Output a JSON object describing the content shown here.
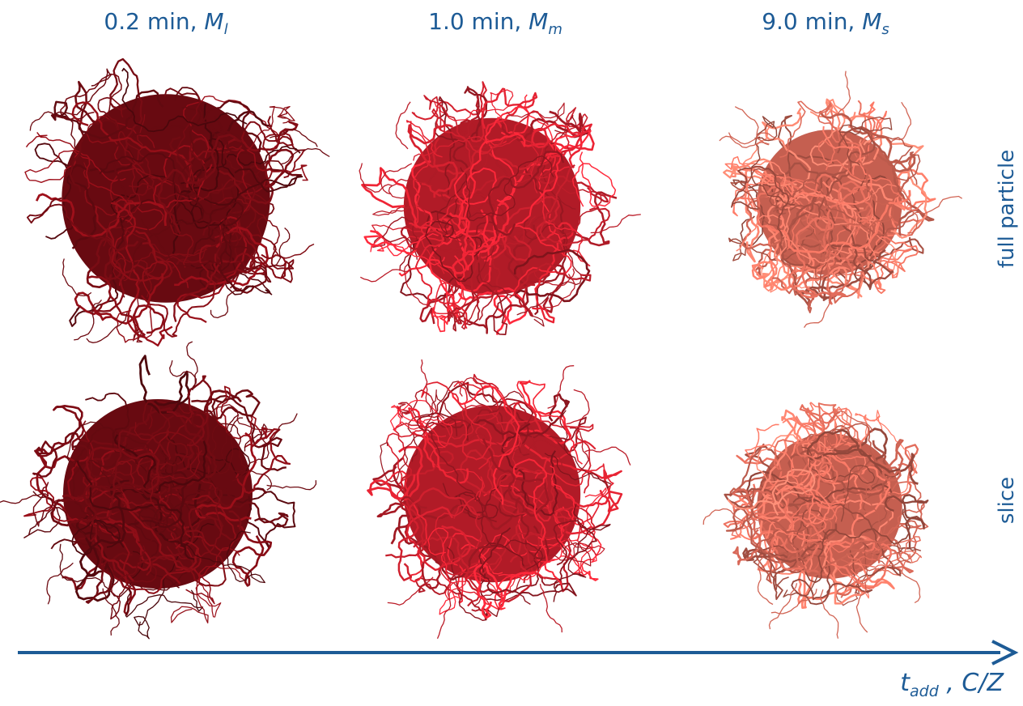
{
  "columns": [
    {
      "prefix": "0.2 min, ",
      "symbol": "M",
      "subscript": "l",
      "color": "#7a0c14"
    },
    {
      "prefix": "1.0 min, ",
      "symbol": "M",
      "subscript": "m",
      "color": "#d0202e"
    },
    {
      "prefix": "9.0 min, ",
      "symbol": "M",
      "subscript": "s",
      "color": "#e8705e"
    }
  ],
  "rows": [
    {
      "label": "full particle"
    },
    {
      "label": "slice"
    }
  ],
  "axis": {
    "main": "t",
    "subscript": "add",
    "suffix": " , C/Z",
    "color": "#1d5b96"
  }
}
